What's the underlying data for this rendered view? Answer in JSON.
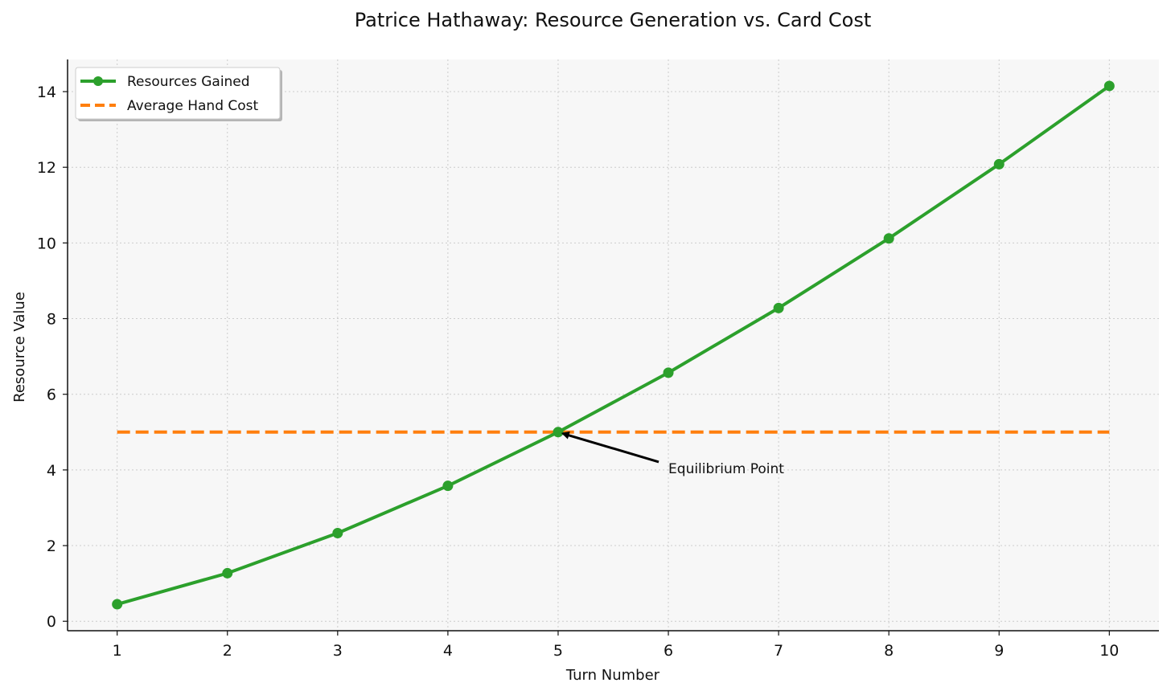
{
  "chart_data": {
    "type": "line",
    "title": "Patrice Hathaway: Resource Generation vs. Card Cost",
    "xlabel": "Turn Number",
    "ylabel": "Resource Value",
    "x": [
      1,
      2,
      3,
      4,
      5,
      6,
      7,
      8,
      9,
      10
    ],
    "xticks": [
      "1",
      "2",
      "3",
      "4",
      "5",
      "6",
      "7",
      "8",
      "9",
      "10"
    ],
    "yticks": [
      "0",
      "2",
      "4",
      "6",
      "8",
      "10",
      "12",
      "14"
    ],
    "xlim": [
      0.55,
      10.45
    ],
    "ylim": [
      -0.25,
      14.85
    ],
    "grid": true,
    "legend_position": "top-left",
    "series": [
      {
        "name": "Resources Gained",
        "style": "solid",
        "marker": "circle",
        "color": "#2ca02c",
        "values": [
          0.45,
          1.27,
          2.33,
          3.58,
          5.0,
          6.57,
          8.28,
          10.12,
          12.08,
          14.15
        ]
      },
      {
        "name": "Average Hand Cost",
        "style": "dashed",
        "marker": "none",
        "color": "#ff7f0e",
        "values": [
          5,
          5,
          5,
          5,
          5,
          5,
          5,
          5,
          5,
          5
        ]
      }
    ],
    "annotations": [
      {
        "text": "Equilibrium Point",
        "x": 5,
        "y": 5,
        "text_x": 6.0,
        "text_y": 4.0
      }
    ]
  },
  "colors": {
    "plot_background": "#f7f7f7",
    "grid": "#cccccc",
    "axis": "#111111"
  }
}
